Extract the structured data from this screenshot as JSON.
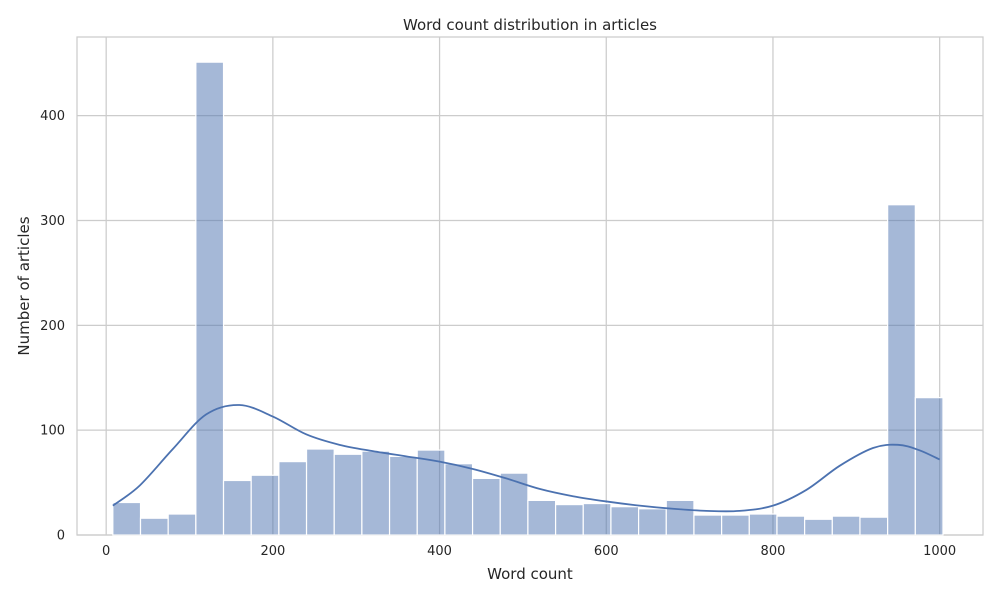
{
  "chart_data": {
    "type": "bar",
    "title": "Word count distribution in articles",
    "xlabel": "Word count",
    "ylabel": "Number of articles",
    "xlim": [
      -35,
      1052
    ],
    "ylim": [
      0,
      475
    ],
    "xticks": [
      0,
      200,
      400,
      600,
      800,
      1000
    ],
    "yticks": [
      0,
      100,
      200,
      300,
      400
    ],
    "grid": true,
    "bin_start": 8,
    "bin_width": 33.2,
    "counts": [
      31,
      16,
      20,
      451,
      52,
      57,
      70,
      82,
      77,
      80,
      75,
      81,
      68,
      54,
      59,
      33,
      29,
      30,
      27,
      25,
      33,
      19,
      19,
      20,
      18,
      15,
      18,
      17,
      315,
      131
    ],
    "kde": {
      "x": [
        8,
        40,
        80,
        120,
        160,
        200,
        240,
        280,
        320,
        360,
        400,
        440,
        480,
        520,
        560,
        600,
        640,
        680,
        720,
        760,
        800,
        840,
        880,
        920,
        950,
        975,
        1000
      ],
      "y": [
        28,
        47,
        82,
        115,
        124,
        113,
        96,
        86,
        80,
        75,
        70,
        63,
        54,
        44,
        37,
        32,
        28,
        25,
        23,
        23,
        28,
        43,
        66,
        83,
        86,
        81,
        72
      ]
    },
    "colors": {
      "bar": "#4c72b0",
      "line": "#4c72b0",
      "grid": "#cccccc"
    }
  }
}
